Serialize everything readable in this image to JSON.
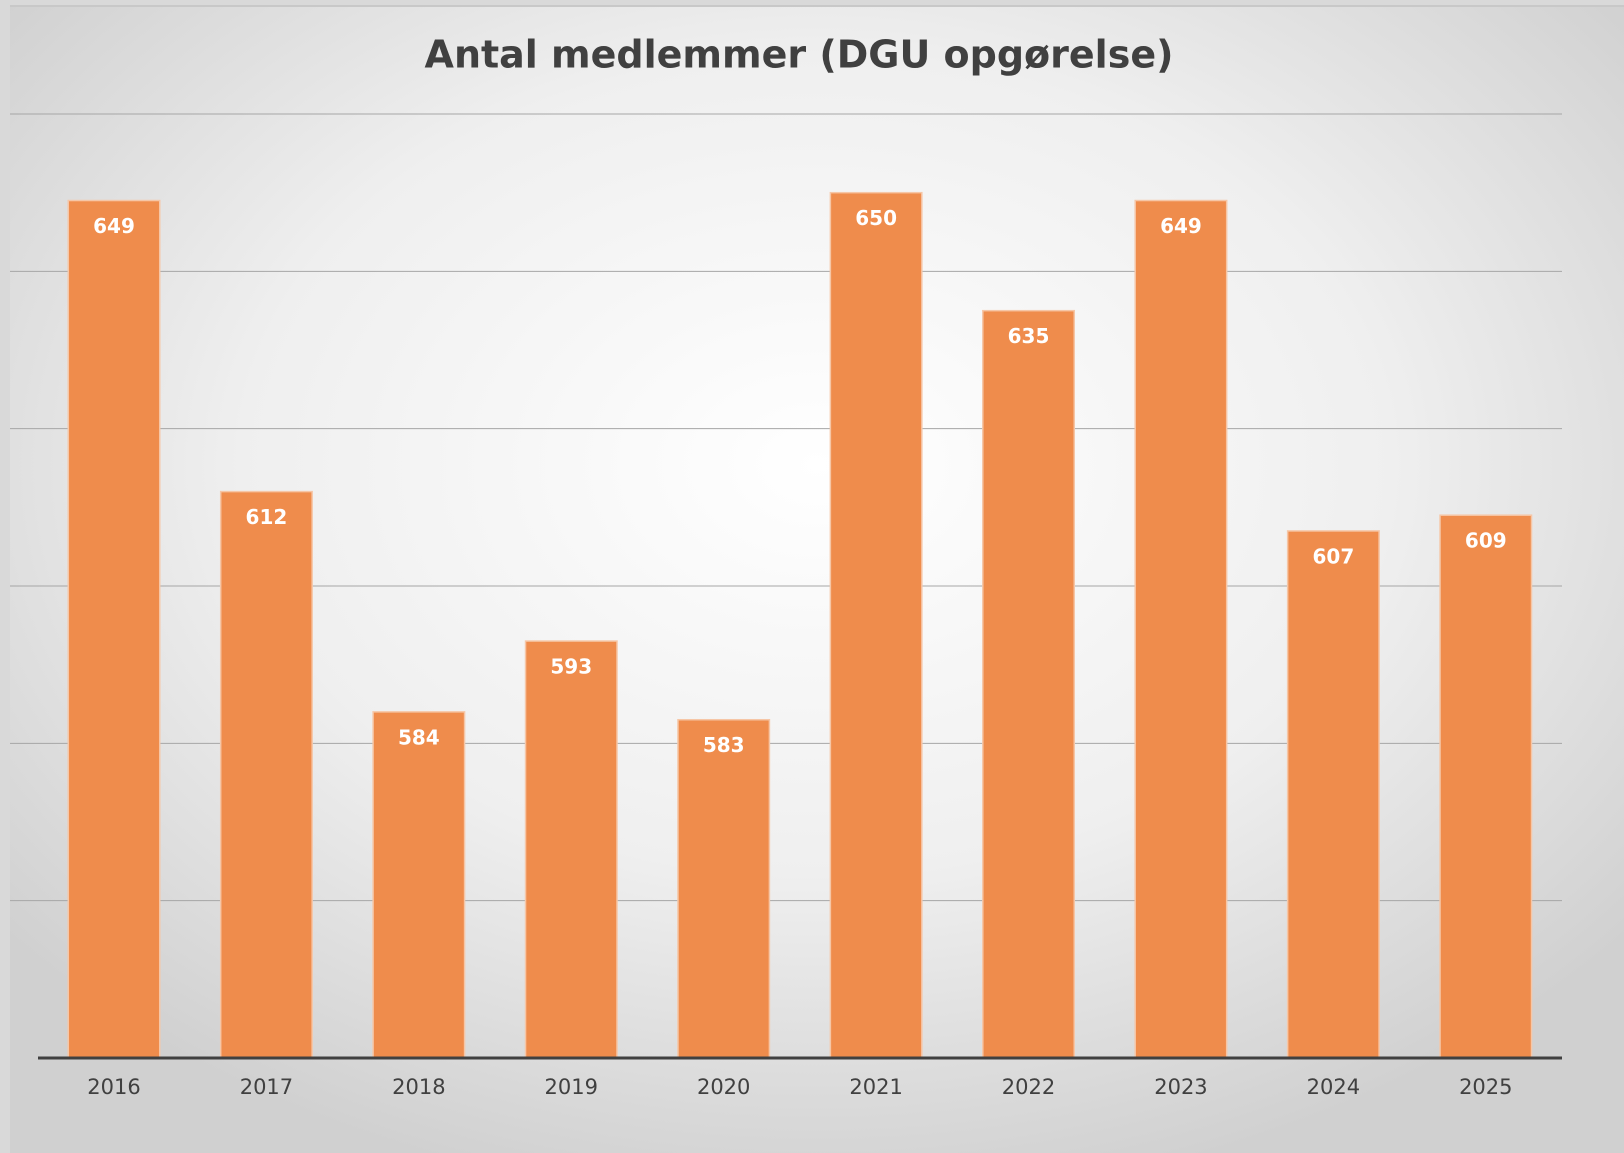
{
  "chart_data": {
    "type": "bar",
    "title": "Antal medlemmer (DGU opgørelse)",
    "categories": [
      "2016",
      "2017",
      "2018",
      "2019",
      "2020",
      "2021",
      "2022",
      "2023",
      "2024",
      "2025"
    ],
    "values": [
      649,
      612,
      584,
      593,
      583,
      650,
      635,
      649,
      607,
      609
    ],
    "color": "#ef8c4c",
    "ylim": [
      540,
      660
    ],
    "yticks": [
      540,
      560,
      580,
      600,
      620,
      640,
      660
    ],
    "grid": true
  }
}
